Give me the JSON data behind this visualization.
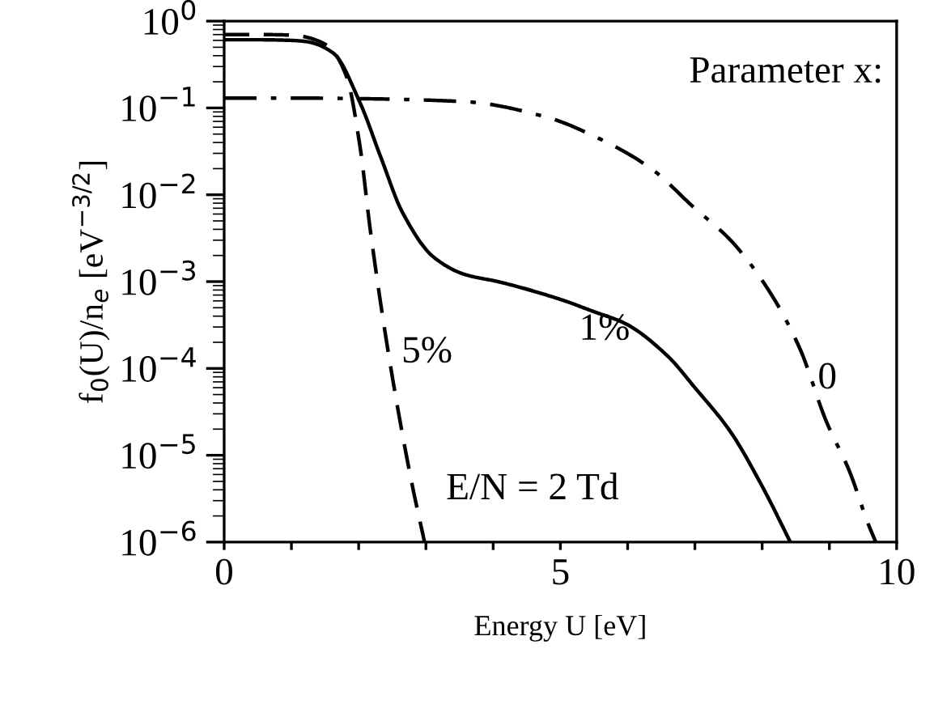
{
  "chart_data": {
    "type": "line",
    "xlabel": "Energy U [eV]",
    "ylabel": "f$_{0}$(U)/n$_{e}$ [eV$^{−3/2}$]",
    "log": "y",
    "grid": false,
    "legend": false,
    "marker": "none",
    "xlim": [
      0,
      10
    ],
    "ylim": [
      1e-06,
      1
    ],
    "xticks": [
      0,
      {
        "value": 1,
        "label": null
      },
      {
        "value": 2,
        "label": null
      },
      {
        "value": 3,
        "label": null
      },
      {
        "value": 4,
        "label": null
      },
      5,
      {
        "value": 6,
        "label": null
      },
      {
        "value": 7,
        "label": null
      },
      {
        "value": 8,
        "label": null
      },
      {
        "value": 9,
        "label": null
      },
      10
    ],
    "yticks": [
      {
        "value": 1e-06,
        "label": "10$^{−6}$"
      },
      {
        "value": 1e-05,
        "label": "10$^{−5}$"
      },
      {
        "value": 0.0001,
        "label": "10$^{−4}$"
      },
      {
        "value": 0.001,
        "label": "10$^{−3}$"
      },
      {
        "value": 0.01,
        "label": "10$^{−2}$"
      },
      {
        "value": 0.1,
        "label": "10$^{−1}$"
      },
      {
        "value": 1,
        "label": "10$^{0}$"
      }
    ],
    "series": [
      {
        "name": "1%",
        "color": "#000000",
        "line_style": "solid",
        "x": [
          0,
          0.5,
          1.0,
          1.23,
          1.62,
          2.02,
          2.33,
          2.65,
          3.12,
          3.59,
          4.07,
          5.01,
          5.5,
          5.96,
          6.59,
          7.0,
          7.53,
          8.0,
          8.42
        ],
        "values": [
          0.61,
          0.61,
          0.6,
          0.58,
          0.43,
          0.115,
          0.027,
          0.0063,
          0.0019,
          0.0012,
          0.001,
          0.00062,
          0.00045,
          0.00033,
          0.00014,
          6e-05,
          1.86e-05,
          4.4e-06,
          1e-06
        ]
      },
      {
        "name": "5%",
        "color": "#000000",
        "line_style": "dashed",
        "x": [
          0,
          0.5,
          1.0,
          1.15,
          1.54,
          1.82,
          2.02,
          2.17,
          2.37,
          2.57,
          2.8,
          2.98
        ],
        "values": [
          0.7,
          0.7,
          0.69,
          0.67,
          0.52,
          0.23,
          0.036,
          0.0041,
          0.00034,
          3.9e-05,
          4.4e-06,
          1e-06
        ]
      },
      {
        "name": "0",
        "color": "#000000",
        "line_style": "dashdot",
        "x": [
          0,
          1.0,
          2.0,
          3.59,
          4.78,
          5.56,
          6.35,
          6.98,
          7.53,
          8.09,
          8.56,
          8.95,
          9.3,
          9.58,
          9.69
        ],
        "values": [
          0.13,
          0.13,
          0.128,
          0.118,
          0.079,
          0.045,
          0.02,
          0.0072,
          0.003,
          0.00081,
          0.00017,
          2.5e-05,
          6.5e-06,
          1.6e-06,
          1e-06
        ]
      }
    ],
    "annotations": [
      "Parameter x:",
      "E/N = 2 Td"
    ]
  }
}
